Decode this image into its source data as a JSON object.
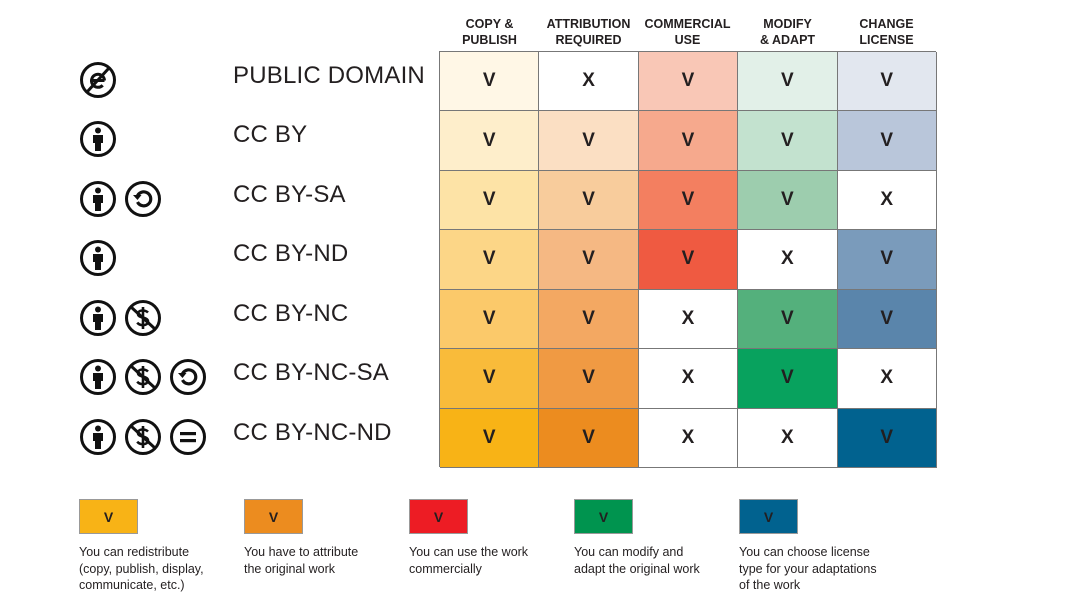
{
  "columns": [
    "COPY &\nPUBLISH",
    "ATTRIBUTION\nREQUIRED",
    "COMMERCIAL\nUSE",
    "MODIFY\n& ADAPT",
    "CHANGE\nLICENSE"
  ],
  "rows": [
    {
      "label": "PUBLIC DOMAIN",
      "icons": [
        "public-domain-icon"
      ],
      "cells": [
        {
          "v": "V",
          "c": "#fff7e6"
        },
        {
          "v": "X",
          "c": "#ffffff"
        },
        {
          "v": "V",
          "c": "#f9c7b6"
        },
        {
          "v": "V",
          "c": "#e2f0e8"
        },
        {
          "v": "V",
          "c": "#e2e7ef"
        }
      ]
    },
    {
      "label": "CC BY",
      "icons": [
        "attribution-icon"
      ],
      "cells": [
        {
          "v": "V",
          "c": "#feeecb"
        },
        {
          "v": "V",
          "c": "#fbdfc3"
        },
        {
          "v": "V",
          "c": "#f6a98d"
        },
        {
          "v": "V",
          "c": "#c3e2cf"
        },
        {
          "v": "V",
          "c": "#b9c6da"
        }
      ]
    },
    {
      "label": "CC BY-SA",
      "icons": [
        "attribution-icon",
        "share-alike-icon"
      ],
      "cells": [
        {
          "v": "V",
          "c": "#fde3a6"
        },
        {
          "v": "V",
          "c": "#f8cc9c"
        },
        {
          "v": "V",
          "c": "#f37f60"
        },
        {
          "v": "V",
          "c": "#9dcdae"
        },
        {
          "v": "X",
          "c": "#ffffff"
        }
      ]
    },
    {
      "label": "CC BY-ND",
      "icons": [
        "attribution-icon"
      ],
      "cells": [
        {
          "v": "V",
          "c": "#fcd687"
        },
        {
          "v": "V",
          "c": "#f5b883"
        },
        {
          "v": "V",
          "c": "#ef5a41"
        },
        {
          "v": "X",
          "c": "#ffffff"
        },
        {
          "v": "V",
          "c": "#7a9bbb"
        }
      ]
    },
    {
      "label": "CC BY-NC",
      "icons": [
        "attribution-icon",
        "non-commercial-icon"
      ],
      "cells": [
        {
          "v": "V",
          "c": "#fbc96a"
        },
        {
          "v": "V",
          "c": "#f3a862"
        },
        {
          "v": "X",
          "c": "#ffffff"
        },
        {
          "v": "V",
          "c": "#54b07c"
        },
        {
          "v": "V",
          "c": "#5a85ab"
        }
      ]
    },
    {
      "label": "CC BY-NC-SA",
      "icons": [
        "attribution-icon",
        "non-commercial-icon",
        "share-alike-icon"
      ],
      "cells": [
        {
          "v": "V",
          "c": "#f9bb3a"
        },
        {
          "v": "V",
          "c": "#f09a43"
        },
        {
          "v": "X",
          "c": "#ffffff"
        },
        {
          "v": "V",
          "c": "#08a25e"
        },
        {
          "v": "X",
          "c": "#ffffff"
        }
      ]
    },
    {
      "label": "CC BY-NC-ND",
      "icons": [
        "attribution-icon",
        "non-commercial-icon",
        "no-derivatives-icon"
      ],
      "cells": [
        {
          "v": "V",
          "c": "#f8b316"
        },
        {
          "v": "V",
          "c": "#ec8c1f"
        },
        {
          "v": "X",
          "c": "#ffffff"
        },
        {
          "v": "X",
          "c": "#ffffff"
        },
        {
          "v": "V",
          "c": "#01628f"
        }
      ]
    }
  ],
  "legend": [
    {
      "mark": "V",
      "color": "#f8b316",
      "text": "You can redistribute\n(copy, publish, display,\ncommunicate, etc.)"
    },
    {
      "mark": "V",
      "color": "#ec8c1f",
      "text": "You have to attribute\nthe original work"
    },
    {
      "mark": "V",
      "color": "#ed1c24",
      "text": "You can use the work\ncommercially"
    },
    {
      "mark": "V",
      "color": "#00944f",
      "text": "You can modify and\nadapt the original work"
    },
    {
      "mark": "V",
      "color": "#01628f",
      "text": "You can choose license\ntype for your adaptations\nof the work"
    }
  ]
}
